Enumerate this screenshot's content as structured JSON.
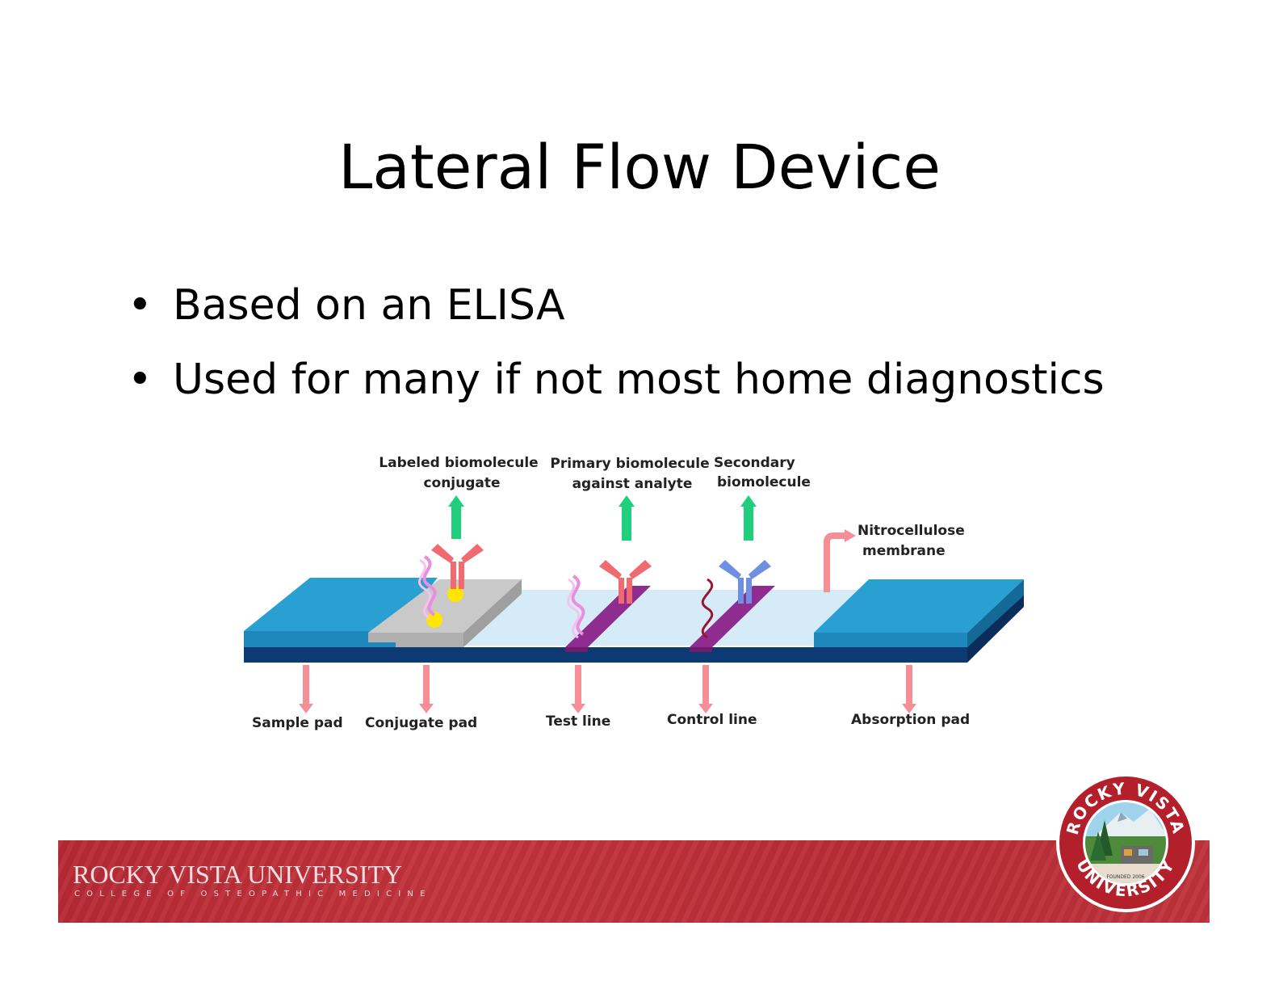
{
  "slide": {
    "title": "Lateral Flow Device",
    "bullets": [
      "Based on an ELISA",
      "Used for many if not most home diagnostics"
    ]
  },
  "diagram": {
    "top_labels": {
      "labeled_conjugate": [
        "Labeled biomolecule",
        "conjugate"
      ],
      "primary": [
        "Primary biomolecule",
        "against analyte"
      ],
      "secondary": [
        "Secondary",
        "biomolecule"
      ],
      "nitrocellulose": [
        "Nitrocellulose",
        "membrane"
      ]
    },
    "bottom_labels": {
      "sample_pad": "Sample pad",
      "conjugate_pad": "Conjugate pad",
      "test_line": "Test line",
      "control_line": "Control line",
      "absorption_pad": "Absorption pad"
    },
    "colors": {
      "pad_blue": "#2a9fd1",
      "backing_navy": "#0d3a73",
      "membrane": "#cfe9f6",
      "conjugate_pad": "#bdbdbd",
      "line_purple": "#8f2c8f",
      "antibody_red": "#f06b70",
      "antibody_blue": "#6f8fe0",
      "arrow_green": "#1fcf7e",
      "arrow_pink": "#f58f95",
      "gold": "#ffe600"
    }
  },
  "footer": {
    "brand": "ROCKY VISTA UNIVERSITY",
    "subtitle": "COLLEGE OF OSTEOPATHIC MEDICINE",
    "seal": {
      "top_text": "ROCKY VISTA",
      "bottom_text": "UNIVERSITY",
      "founded": "FOUNDED 2006"
    },
    "band_color": "#bd2f38"
  }
}
